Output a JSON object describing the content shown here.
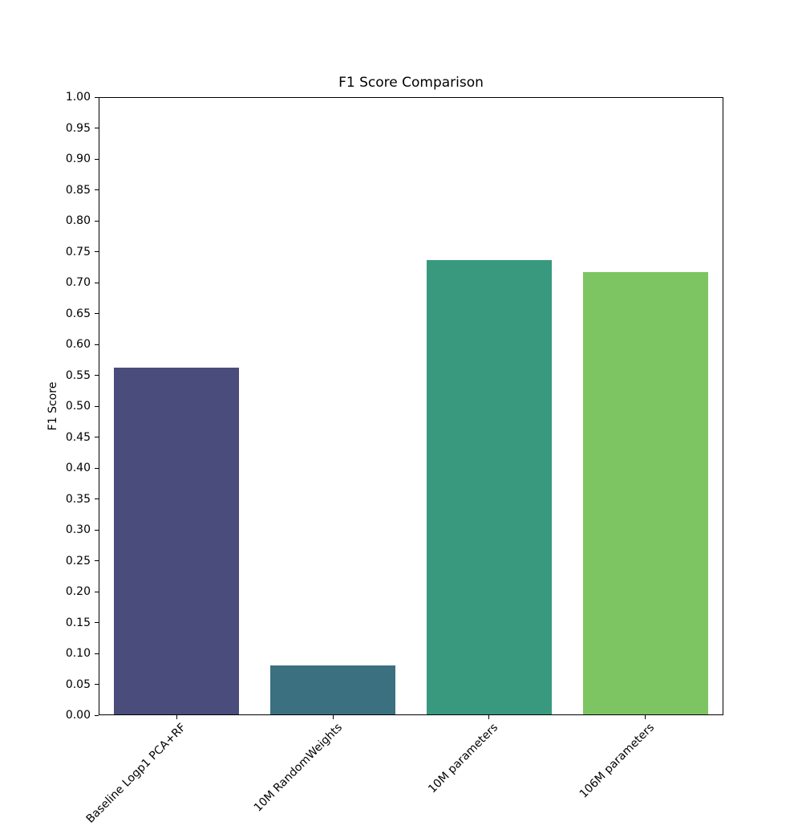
{
  "chart_data": {
    "type": "bar",
    "title": "F1 Score Comparison",
    "xlabel": "",
    "ylabel": "F1 Score",
    "categories": [
      "Baseline Logp1 PCA+RF",
      "10M RandomWeights",
      "10M parameters",
      "106M parameters"
    ],
    "values": [
      0.563,
      0.08,
      0.737,
      0.718
    ],
    "bar_colors": [
      "#4A4C7B",
      "#3B7080",
      "#38997E",
      "#7DC462"
    ],
    "ylim": [
      0.0,
      1.0
    ],
    "y_ticks": [
      "0.00",
      "0.05",
      "0.10",
      "0.15",
      "0.20",
      "0.25",
      "0.30",
      "0.35",
      "0.40",
      "0.45",
      "0.50",
      "0.55",
      "0.60",
      "0.65",
      "0.70",
      "0.75",
      "0.80",
      "0.85",
      "0.90",
      "0.95",
      "1.00"
    ],
    "x_tick_rotation": 45,
    "grid": false,
    "legend": "none",
    "bar_width_fraction": 0.8,
    "axis_color": "#000000",
    "background_color": "#ffffff"
  }
}
